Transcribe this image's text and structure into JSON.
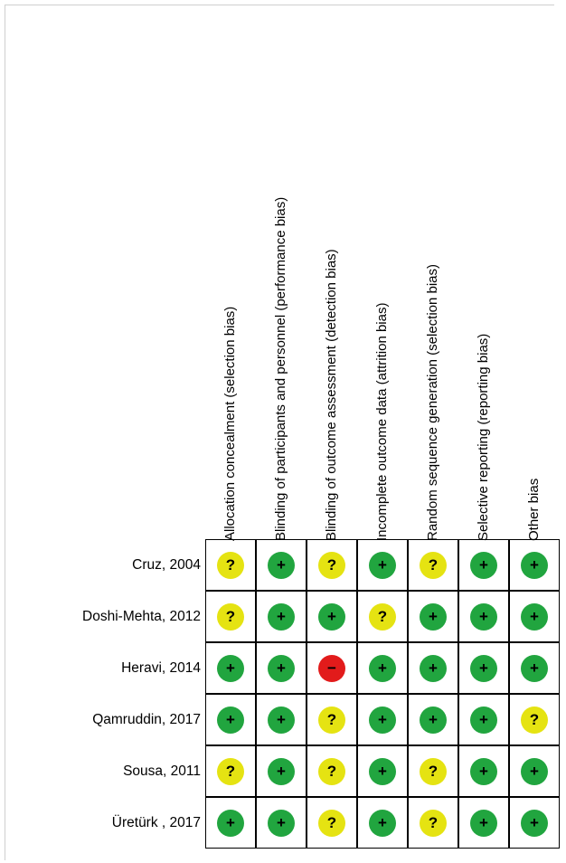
{
  "domains": [
    "Allocation concealment (selection bias)",
    "Blinding of participants and personnel (performance bias)",
    "Blinding of outcome assessment (detection bias)",
    "Incomplete outcome data (attrition bias)",
    "Random sequence generation (selection bias)",
    "Selective reporting (reporting bias)",
    "Other bias"
  ],
  "studies": [
    {
      "name": "Cruz, 2004",
      "ratings": [
        "unclear",
        "low",
        "unclear",
        "low",
        "unclear",
        "low",
        "low"
      ]
    },
    {
      "name": "Doshi-Mehta, 2012",
      "ratings": [
        "unclear",
        "low",
        "low",
        "unclear",
        "low",
        "low",
        "low"
      ]
    },
    {
      "name": "Heravi, 2014",
      "ratings": [
        "low",
        "low",
        "high",
        "low",
        "low",
        "low",
        "low"
      ]
    },
    {
      "name": "Qamruddin, 2017",
      "ratings": [
        "low",
        "low",
        "unclear",
        "low",
        "low",
        "low",
        "unclear"
      ]
    },
    {
      "name": "Sousa, 2011",
      "ratings": [
        "unclear",
        "low",
        "unclear",
        "low",
        "unclear",
        "low",
        "low"
      ]
    },
    {
      "name": "Üretürk , 2017",
      "ratings": [
        "low",
        "low",
        "unclear",
        "low",
        "unclear",
        "low",
        "low"
      ]
    }
  ],
  "symbols": {
    "low": "+",
    "unclear": "?",
    "high": "−"
  },
  "colors": {
    "low": "#21a53f",
    "unclear": "#e5e312",
    "high": "#e21b1b"
  }
}
